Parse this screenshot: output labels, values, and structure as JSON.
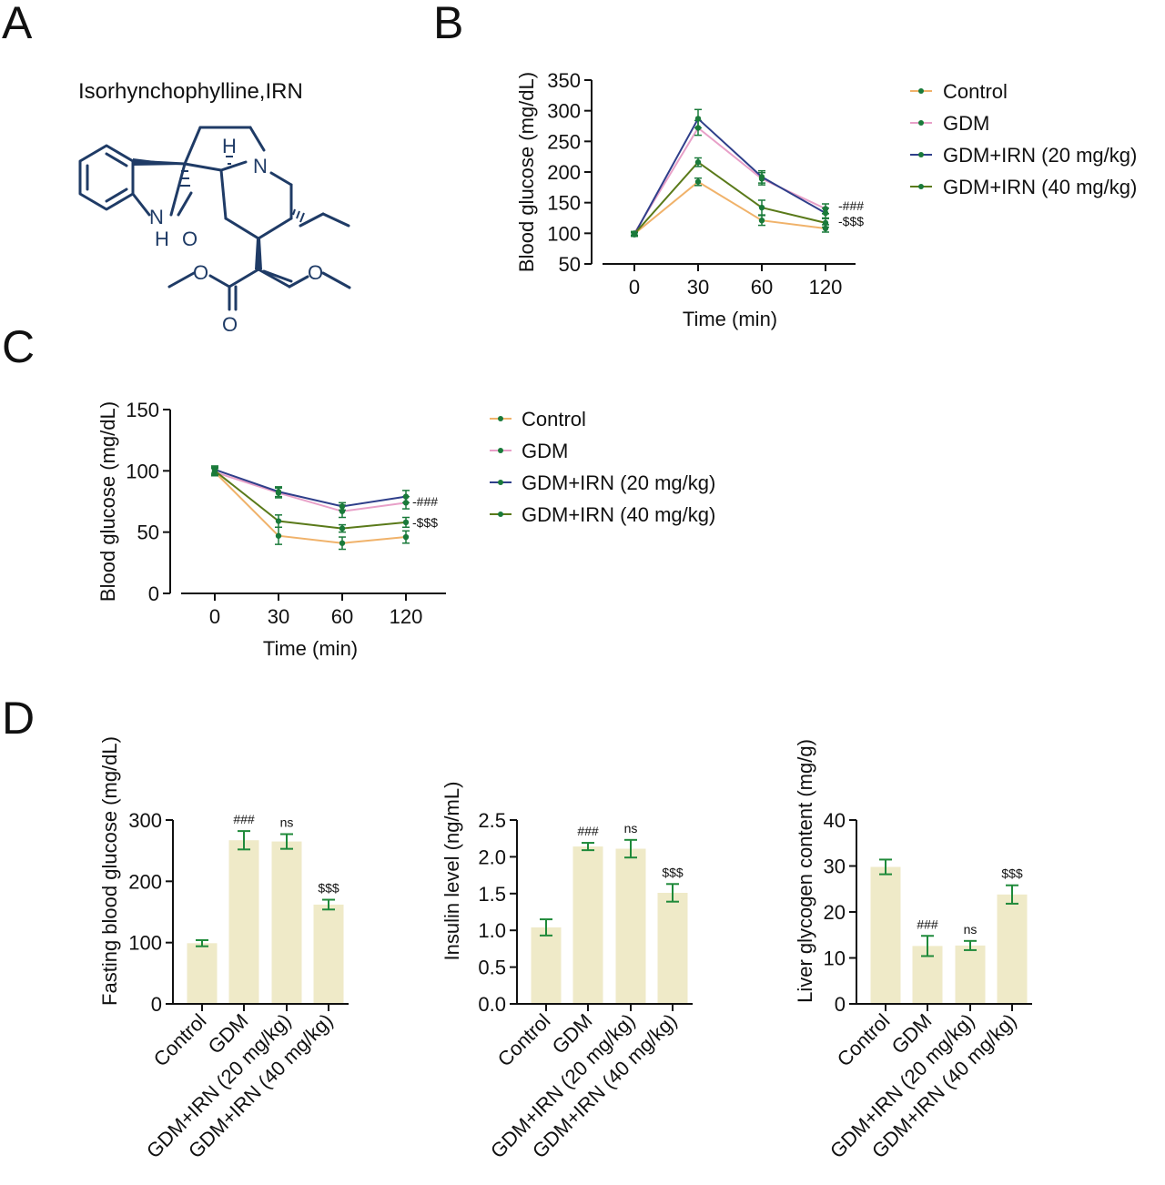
{
  "panels": {
    "A": "A",
    "B": "B",
    "C": "C",
    "D": "D"
  },
  "molecule": {
    "name": "Isorhynchophylline,IRN",
    "atoms": {
      "h_top": "H",
      "n_ring": "N",
      "nh_n": "N",
      "nh_h": "H",
      "o_lactam": "O",
      "o_ester1": "O",
      "o_ester2": "O",
      "o_carbonyl": "O"
    }
  },
  "colors": {
    "control": "#f0b26a",
    "gdm": "#e8a0c8",
    "irn20": "#2f3f8a",
    "irn40": "#5a7a1a",
    "marker": "#1a7a3a",
    "bar": "#efeac8",
    "errbar": "#1f8a3a"
  },
  "chart_data": [
    {
      "id": "B",
      "type": "line",
      "xlabel": "Time (min)",
      "ylabel": "Blood glucose (mg/dL)",
      "categories": [
        "0",
        "30",
        "60",
        "120"
      ],
      "ylim": [
        50,
        350
      ],
      "yticks": [
        50,
        100,
        150,
        200,
        250,
        300,
        350
      ],
      "legend": "right",
      "series": [
        {
          "name": "Control",
          "values": [
            99,
            184,
            121,
            108
          ],
          "err": [
            3,
            6,
            8,
            6
          ]
        },
        {
          "name": "GDM",
          "values": [
            100,
            272,
            189,
            140
          ],
          "err": [
            3,
            12,
            10,
            8
          ]
        },
        {
          "name": "GDM+IRN (20 mg/kg)",
          "values": [
            98,
            287,
            192,
            133
          ],
          "err": [
            3,
            15,
            10,
            8
          ]
        },
        {
          "name": "GDM+IRN (40 mg/kg)",
          "values": [
            99,
            216,
            142,
            117
          ],
          "err": [
            3,
            7,
            12,
            7
          ]
        }
      ],
      "annotations": [
        "-###",
        "-$$$"
      ]
    },
    {
      "id": "C",
      "type": "line",
      "xlabel": "Time (min)",
      "ylabel": "Blood glucose (mg/dL)",
      "categories": [
        "0",
        "30",
        "60",
        "120"
      ],
      "ylim": [
        0,
        150
      ],
      "yticks": [
        0,
        50,
        100,
        150
      ],
      "legend": "right",
      "series": [
        {
          "name": "Control",
          "values": [
            99,
            47,
            41,
            46
          ],
          "err": [
            3,
            7,
            5,
            5
          ]
        },
        {
          "name": "GDM",
          "values": [
            99,
            82,
            67,
            74
          ],
          "err": [
            3,
            4,
            5,
            5
          ]
        },
        {
          "name": "GDM+IRN (20 mg/kg)",
          "values": [
            101,
            83,
            71,
            79
          ],
          "err": [
            3,
            4,
            3,
            5
          ]
        },
        {
          "name": "GDM+IRN (40 mg/kg)",
          "values": [
            100,
            59,
            53,
            58
          ],
          "err": [
            3,
            5,
            3,
            4
          ]
        }
      ],
      "annotations": [
        "-###",
        "-$$$"
      ]
    },
    {
      "id": "D1",
      "type": "bar",
      "xlabel": "",
      "ylabel": "Fasting blood glucose (mg/dL)",
      "categories": [
        "Control",
        "GDM",
        "GDM+IRN (20 mg/kg)",
        "GDM+IRN (40 mg/kg)"
      ],
      "values": [
        99,
        267,
        265,
        162
      ],
      "err": [
        5,
        15,
        12,
        8
      ],
      "ylim": [
        0,
        300
      ],
      "yticks": [
        0,
        100,
        200,
        300
      ],
      "sig": [
        "",
        "###",
        "ns",
        "$$$"
      ]
    },
    {
      "id": "D2",
      "type": "bar",
      "xlabel": "",
      "ylabel": "Insulin level (ng/mL)",
      "categories": [
        "Control",
        "GDM",
        "GDM+IRN (20 mg/kg)",
        "GDM+IRN (40 mg/kg)"
      ],
      "values": [
        1.04,
        2.14,
        2.11,
        1.51
      ],
      "err": [
        0.11,
        0.05,
        0.12,
        0.12
      ],
      "ylim": [
        0,
        2.5
      ],
      "yticks": [
        0.0,
        0.5,
        1.0,
        1.5,
        2.0,
        2.5
      ],
      "ytick_labels": [
        "0.0",
        "0.5",
        "1.0",
        "1.5",
        "2.0",
        "2.5"
      ],
      "sig": [
        "",
        "###",
        "ns",
        "$$$"
      ]
    },
    {
      "id": "D3",
      "type": "bar",
      "xlabel": "",
      "ylabel": "Liver glycogen content (mg/g)",
      "categories": [
        "Control",
        "GDM",
        "GDM+IRN (20 mg/kg)",
        "GDM+IRN (40 mg/kg)"
      ],
      "values": [
        29.8,
        12.6,
        12.7,
        23.8
      ],
      "err": [
        1.6,
        2.2,
        1.0,
        2.0
      ],
      "ylim": [
        0,
        40
      ],
      "yticks": [
        0,
        10,
        20,
        30,
        40
      ],
      "sig": [
        "",
        "###",
        "ns",
        "$$$"
      ]
    }
  ]
}
